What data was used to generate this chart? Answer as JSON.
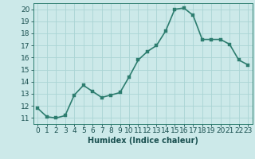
{
  "x": [
    0,
    1,
    2,
    3,
    4,
    5,
    6,
    7,
    8,
    9,
    10,
    11,
    12,
    13,
    14,
    15,
    16,
    17,
    18,
    19,
    20,
    21,
    22,
    23
  ],
  "y": [
    11.8,
    11.1,
    11.0,
    11.2,
    12.9,
    13.7,
    13.2,
    12.7,
    12.9,
    13.1,
    14.4,
    15.8,
    16.5,
    17.0,
    18.2,
    20.0,
    20.1,
    19.5,
    17.5,
    17.5,
    17.5,
    17.1,
    15.8,
    15.4
  ],
  "xlim": [
    -0.5,
    23.5
  ],
  "ylim": [
    10.5,
    20.5
  ],
  "yticks": [
    11,
    12,
    13,
    14,
    15,
    16,
    17,
    18,
    19,
    20
  ],
  "xticks": [
    0,
    1,
    2,
    3,
    4,
    5,
    6,
    7,
    8,
    9,
    10,
    11,
    12,
    13,
    14,
    15,
    16,
    17,
    18,
    19,
    20,
    21,
    22,
    23
  ],
  "xlabel": "Humidex (Indice chaleur)",
  "line_color": "#2d7d6f",
  "marker_color": "#2d7d6f",
  "bg_color": "#cce9e9",
  "grid_color": "#aad4d4",
  "axis_color": "#2d7d6f",
  "tick_label_color": "#1a5050",
  "xlabel_color": "#1a5050",
  "xlabel_fontsize": 7,
  "tick_fontsize": 6.5,
  "line_width": 1.2,
  "marker_size": 2.5
}
